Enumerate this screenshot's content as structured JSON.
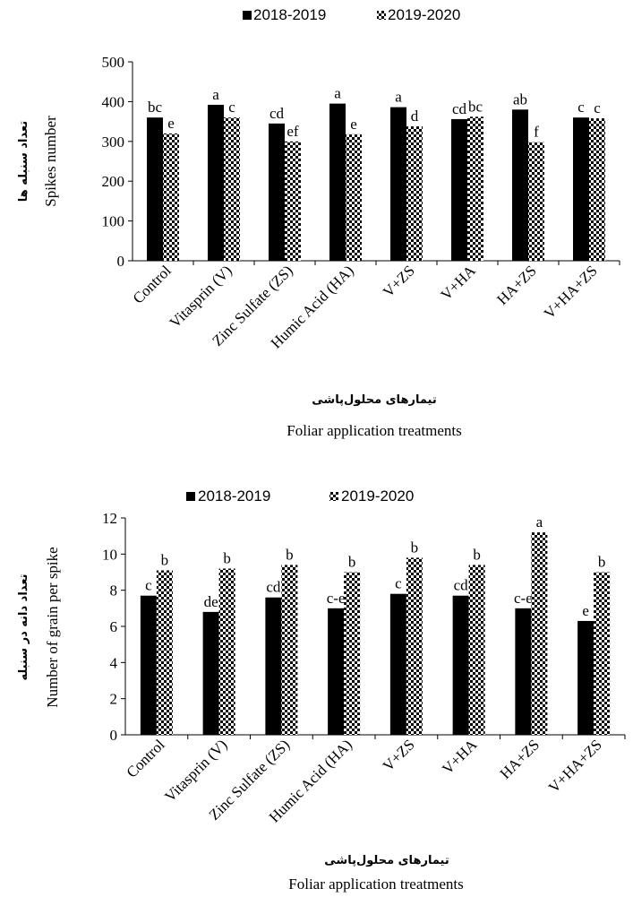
{
  "colors": {
    "series1": "#000000",
    "series2_pattern": "checker-black-white"
  },
  "chart_data": [
    {
      "type": "bar",
      "categories": [
        "Control",
        "Vitasprin (V)",
        "Zinc Sulfate (ZS)",
        "Humic Acid (HA)",
        "V+ZS",
        "V+HA",
        "HA+ZS",
        "V+HA+ZS"
      ],
      "series": [
        {
          "name": "2018-2019",
          "values": [
            360,
            392,
            345,
            395,
            386,
            356,
            380,
            360
          ],
          "labels": [
            "bc",
            "a",
            "cd",
            "a",
            "a",
            "cd",
            "ab",
            "c"
          ]
        },
        {
          "name": "2019-2020",
          "values": [
            320,
            360,
            300,
            318,
            338,
            362,
            298,
            358
          ],
          "labels": [
            "e",
            "c",
            "ef",
            "e",
            "d",
            "bc",
            "f",
            "c"
          ]
        }
      ],
      "ylabel": "Spikes number",
      "ylabel_fa": "تعداد سنبله ها",
      "xlabel_fa": "تیمارهای محلول‌پاشی",
      "xlabel": "Foliar application treatments",
      "ylim": [
        0,
        500
      ],
      "yticks": [
        0,
        100,
        200,
        300,
        400,
        500
      ],
      "legend_position": "top"
    },
    {
      "type": "bar",
      "categories": [
        "Control",
        "Vitasprin (V)",
        "Zinc Sulfate (ZS)",
        "Humic Acid (HA)",
        "V+ZS",
        "V+HA",
        "HA+ZS",
        "V+HA+ZS"
      ],
      "series": [
        {
          "name": "2018-2019",
          "values": [
            7.7,
            6.8,
            7.6,
            7.0,
            7.8,
            7.7,
            7.0,
            6.3
          ],
          "labels": [
            "c",
            "de",
            "cd",
            "c-e",
            "c",
            "cd",
            "c-e",
            "e"
          ]
        },
        {
          "name": "2019-2020",
          "values": [
            9.1,
            9.2,
            9.4,
            9.0,
            9.8,
            9.4,
            11.2,
            9.0
          ],
          "labels": [
            "b",
            "b",
            "b",
            "b",
            "b",
            "b",
            "a",
            "b"
          ]
        }
      ],
      "ylabel": "Number of grain per spike",
      "ylabel_fa": "تعداد دانه در سنبله",
      "xlabel_fa": "تیمارهای محلول‌پاشی",
      "xlabel": "Foliar application treatments",
      "ylim": [
        0,
        12
      ],
      "yticks": [
        0,
        2,
        4,
        6,
        8,
        10,
        12
      ],
      "legend_position": "top"
    }
  ]
}
